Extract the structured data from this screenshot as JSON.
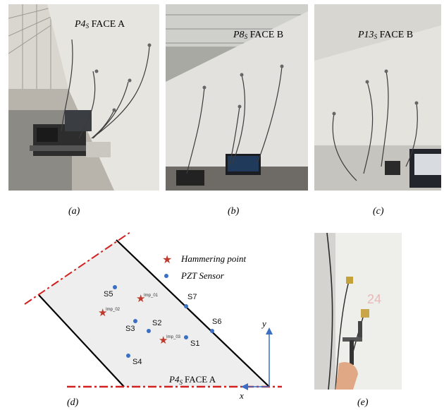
{
  "photos": [
    {
      "label_main": "P4",
      "label_sub": "S",
      "label_rest": "FACE A",
      "caption": "(a)"
    },
    {
      "label_main": "P8",
      "label_sub": "S",
      "label_rest": "FACE B",
      "caption": "(b)"
    },
    {
      "label_main": "P13",
      "label_sub": "S",
      "label_rest": "FACE B",
      "caption": "(c)"
    }
  ],
  "diagram": {
    "caption": "(d)",
    "legend": {
      "hammer_label": "Hammering point",
      "sensor_label": "PZT Sensor",
      "hammer_color": "#c0392b",
      "sensor_color": "#3a6fc4"
    },
    "face_label_main": "P4",
    "face_label_sub": "S",
    "face_label_rest": "FACE A",
    "axis_x": "x",
    "axis_y": "y",
    "sensors": [
      {
        "name": "S5"
      },
      {
        "name": "S7"
      },
      {
        "name": "S3"
      },
      {
        "name": "S2"
      },
      {
        "name": "S6"
      },
      {
        "name": "S1"
      },
      {
        "name": "S4"
      }
    ],
    "hammer_points": [
      {
        "name": "Imp_01"
      },
      {
        "name": "Imp_02"
      },
      {
        "name": "Imp_03"
      }
    ]
  },
  "photo_e": {
    "caption": "(e)"
  }
}
